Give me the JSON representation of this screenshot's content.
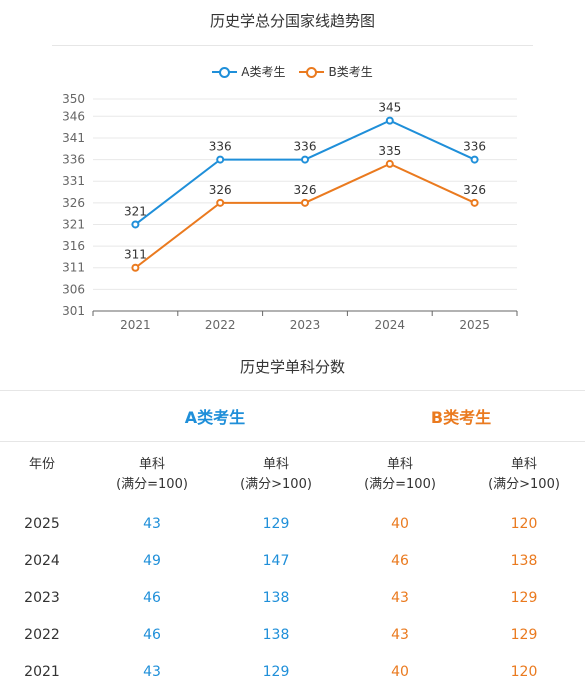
{
  "chart_title": "历史学总分国家线趋势图",
  "chart_data": {
    "type": "line",
    "x": [
      "2021",
      "2022",
      "2023",
      "2024",
      "2025"
    ],
    "series": [
      {
        "name": "A类考生",
        "values": [
          321,
          336,
          336,
          345,
          336
        ],
        "color": "#1f8fd9"
      },
      {
        "name": "B类考生",
        "values": [
          311,
          326,
          326,
          335,
          326
        ],
        "color": "#ea7a1f"
      }
    ],
    "yticks": [
      301,
      306,
      311,
      316,
      321,
      326,
      331,
      336,
      341,
      346,
      350
    ],
    "ylim": [
      301,
      350
    ],
    "grid": true,
    "legend": "top-center"
  },
  "table": {
    "title": "历史学单科分数",
    "group_a": "A类考生",
    "group_b": "B类考生",
    "year_header": "年份",
    "col_line1": "单科",
    "col_eq": "(满分=100)",
    "col_gt": "(满分>100)",
    "rows": [
      {
        "year": "2025",
        "a1": "43",
        "a2": "129",
        "b1": "40",
        "b2": "120"
      },
      {
        "year": "2024",
        "a1": "49",
        "a2": "147",
        "b1": "46",
        "b2": "138"
      },
      {
        "year": "2023",
        "a1": "46",
        "a2": "138",
        "b1": "43",
        "b2": "129"
      },
      {
        "year": "2022",
        "a1": "46",
        "a2": "138",
        "b1": "43",
        "b2": "129"
      },
      {
        "year": "2021",
        "a1": "43",
        "a2": "129",
        "b1": "40",
        "b2": "120"
      }
    ]
  },
  "colors": {
    "a": "#1f8fd9",
    "b": "#ea7a1f",
    "grid": "#e8e8e8",
    "axis": "#666666"
  }
}
